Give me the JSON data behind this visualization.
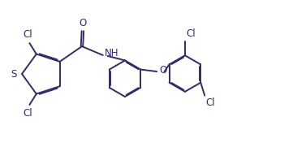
{
  "background_color": "#ffffff",
  "line_color": "#2d2d6b",
  "line_width": 1.4,
  "font_size": 8.5,
  "label_S": "S",
  "label_O_carbonyl": "O",
  "label_NH": "NH",
  "label_O_ether": "O",
  "label_Cl": "Cl"
}
